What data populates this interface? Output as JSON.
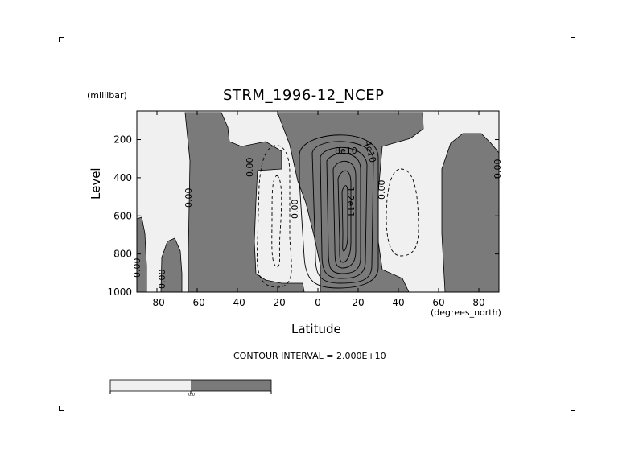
{
  "chart_data": {
    "type": "contour",
    "title": "STRM_1996-12_NCEP",
    "ylabel": "Level",
    "yunits": "(millibar)",
    "xlabel": "Latitude",
    "xunits": "(degrees_north)",
    "footer": "CONTOUR INTERVAL = 2.000E+10",
    "xlim": [
      -90,
      90
    ],
    "ylim": [
      1000,
      50
    ],
    "xticks": [
      "-80",
      "-60",
      "-40",
      "-20",
      "0",
      "20",
      "40",
      "60",
      "80"
    ],
    "yticks": [
      "200",
      "400",
      "600",
      "800",
      "1000"
    ],
    "contour_labels": [
      "0.00",
      "0.00",
      "0.00",
      "0.00",
      "0.00",
      "0.00",
      "0.00",
      "8e10",
      "4e10",
      "1.2e11"
    ],
    "colorbar": {
      "mid_label": "0.0",
      "low_color": "#f0f0f0",
      "high_color": "#7a7a7a"
    },
    "colors": {
      "negative": "#f0f0f0",
      "positive": "#7a7a7a"
    }
  }
}
